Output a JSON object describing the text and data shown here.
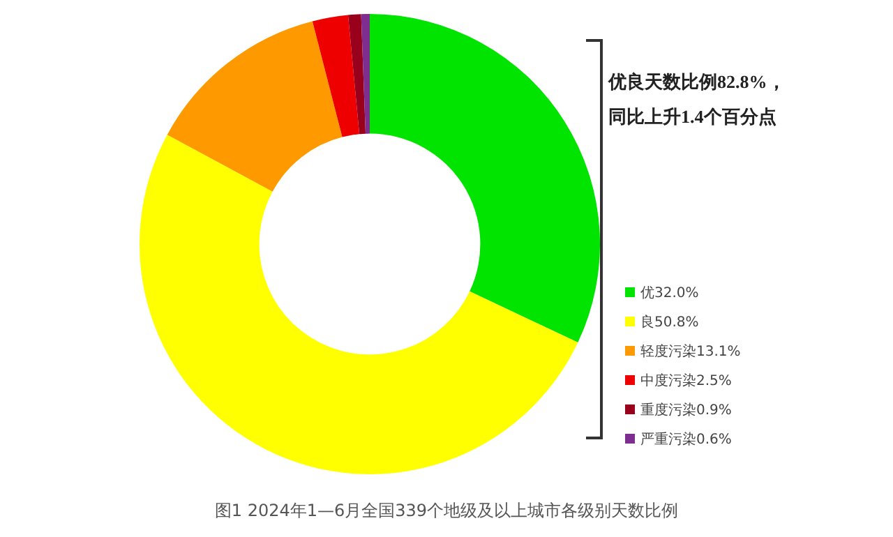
{
  "chart_data": {
    "type": "donut",
    "title": "图1  2024年1—6月全国339个地级及以上城市各级别天数比例",
    "categories": [
      "优32.0%",
      "良50.8%",
      "轻度污染13.1%",
      "中度污染2.5%",
      "重度污染0.9%",
      "严重污染0.6%"
    ],
    "values": [
      32.0,
      50.8,
      13.1,
      2.5,
      0.9,
      0.6
    ],
    "colors": [
      "#00e400",
      "#ffff00",
      "#ff9900",
      "#ee0000",
      "#99001b",
      "#7e2e8e"
    ],
    "legend": "right",
    "annotations": [
      "优良天数比例82.8%，",
      "同比上升1.4个百分点"
    ]
  }
}
